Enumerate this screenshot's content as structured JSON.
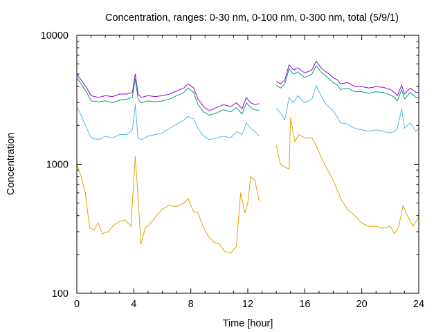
{
  "chart_data": {
    "type": "line",
    "title": "Concentration, ranges: 0-30 nm, 0-100 nm, 0-300 nm, total (5/9/1)",
    "xlabel": "Time [hour]",
    "ylabel": "Concentration",
    "xlim": [
      0,
      24
    ],
    "ylim": [
      100,
      10000
    ],
    "yscale": "log",
    "grid": false,
    "legend": "none",
    "x_ticks": [
      0,
      4,
      8,
      12,
      16,
      20,
      24
    ],
    "y_ticks": [
      100,
      1000,
      10000
    ],
    "x_tick_labels": [
      "0",
      "4",
      "8",
      "12",
      "16",
      "20",
      "24"
    ],
    "y_tick_labels": [
      "100",
      "1000",
      "10000"
    ],
    "series": [
      {
        "color": "#9400d3",
        "segments": [
          [
            [
              0,
              5000
            ],
            [
              0.3,
              4500
            ],
            [
              0.7,
              3900
            ],
            [
              1.0,
              3400
            ],
            [
              1.5,
              3300
            ],
            [
              2.0,
              3400
            ],
            [
              2.5,
              3350
            ],
            [
              3.0,
              3500
            ],
            [
              3.5,
              3500
            ],
            [
              3.9,
              3600
            ],
            [
              4.1,
              5000
            ],
            [
              4.3,
              3500
            ],
            [
              4.5,
              3300
            ],
            [
              5.0,
              3400
            ],
            [
              5.5,
              3350
            ],
            [
              6.0,
              3400
            ],
            [
              6.5,
              3500
            ],
            [
              7.0,
              3700
            ],
            [
              7.5,
              3900
            ],
            [
              7.8,
              4200
            ],
            [
              8.2,
              3900
            ],
            [
              8.5,
              3200
            ],
            [
              8.9,
              2800
            ],
            [
              9.3,
              2600
            ],
            [
              9.8,
              2750
            ],
            [
              10.3,
              2900
            ],
            [
              10.8,
              2800
            ],
            [
              11.2,
              3000
            ],
            [
              11.6,
              2700
            ],
            [
              11.9,
              3300
            ],
            [
              12.2,
              3000
            ],
            [
              12.5,
              2900
            ],
            [
              12.8,
              2950
            ]
          ],
          [
            [
              14.0,
              4400
            ],
            [
              14.3,
              4200
            ],
            [
              14.6,
              4500
            ],
            [
              14.9,
              5900
            ],
            [
              15.2,
              5400
            ],
            [
              15.5,
              5600
            ],
            [
              16.0,
              5100
            ],
            [
              16.5,
              5400
            ],
            [
              16.8,
              6300
            ],
            [
              17.2,
              5500
            ],
            [
              17.5,
              5200
            ],
            [
              18.0,
              4700
            ],
            [
              18.3,
              4500
            ],
            [
              18.5,
              4200
            ],
            [
              19.0,
              4300
            ],
            [
              19.5,
              4000
            ],
            [
              20.0,
              4000
            ],
            [
              20.5,
              3900
            ],
            [
              21.0,
              4000
            ],
            [
              21.5,
              3950
            ],
            [
              22.0,
              3800
            ],
            [
              22.3,
              3600
            ],
            [
              22.5,
              3400
            ],
            [
              22.8,
              4100
            ],
            [
              23.0,
              3500
            ],
            [
              23.4,
              3900
            ],
            [
              23.8,
              3600
            ],
            [
              24,
              3600
            ]
          ]
        ]
      },
      {
        "color": "#009e73",
        "segments": [
          [
            [
              0,
              4700
            ],
            [
              0.3,
              4200
            ],
            [
              0.7,
              3600
            ],
            [
              1.0,
              3100
            ],
            [
              1.5,
              3050
            ],
            [
              2.0,
              3100
            ],
            [
              2.5,
              3000
            ],
            [
              3.0,
              3150
            ],
            [
              3.5,
              3200
            ],
            [
              3.9,
              3300
            ],
            [
              4.1,
              4600
            ],
            [
              4.3,
              3200
            ],
            [
              4.5,
              3000
            ],
            [
              5.0,
              3100
            ],
            [
              5.5,
              3050
            ],
            [
              6.0,
              3100
            ],
            [
              6.5,
              3200
            ],
            [
              7.0,
              3400
            ],
            [
              7.5,
              3600
            ],
            [
              7.8,
              3900
            ],
            [
              8.2,
              3600
            ],
            [
              8.5,
              2900
            ],
            [
              8.9,
              2550
            ],
            [
              9.3,
              2400
            ],
            [
              9.8,
              2500
            ],
            [
              10.3,
              2650
            ],
            [
              10.8,
              2550
            ],
            [
              11.2,
              2750
            ],
            [
              11.6,
              2450
            ],
            [
              11.9,
              3000
            ],
            [
              12.2,
              2750
            ],
            [
              12.5,
              2650
            ],
            [
              12.8,
              2600
            ]
          ],
          [
            [
              14.0,
              4100
            ],
            [
              14.3,
              3900
            ],
            [
              14.6,
              4200
            ],
            [
              14.9,
              5500
            ],
            [
              15.2,
              5000
            ],
            [
              15.5,
              5200
            ],
            [
              16.0,
              4700
            ],
            [
              16.5,
              5000
            ],
            [
              16.8,
              5800
            ],
            [
              17.2,
              5100
            ],
            [
              17.5,
              4800
            ],
            [
              18.0,
              4300
            ],
            [
              18.3,
              4100
            ],
            [
              18.5,
              3800
            ],
            [
              19.0,
              3900
            ],
            [
              19.5,
              3650
            ],
            [
              20.0,
              3650
            ],
            [
              20.5,
              3550
            ],
            [
              21.0,
              3650
            ],
            [
              21.5,
              3600
            ],
            [
              22.0,
              3450
            ],
            [
              22.3,
              3300
            ],
            [
              22.5,
              3100
            ],
            [
              22.8,
              3800
            ],
            [
              23.0,
              3200
            ],
            [
              23.4,
              3600
            ],
            [
              23.8,
              3300
            ],
            [
              24,
              3300
            ]
          ]
        ]
      },
      {
        "color": "#56b4e9",
        "segments": [
          [
            [
              0,
              2800
            ],
            [
              0.3,
              2400
            ],
            [
              0.7,
              1900
            ],
            [
              1.0,
              1600
            ],
            [
              1.5,
              1550
            ],
            [
              2.0,
              1650
            ],
            [
              2.5,
              1600
            ],
            [
              3.0,
              1700
            ],
            [
              3.5,
              1700
            ],
            [
              3.9,
              1850
            ],
            [
              4.1,
              2900
            ],
            [
              4.3,
              1600
            ],
            [
              4.5,
              1550
            ],
            [
              5.0,
              1650
            ],
            [
              5.5,
              1700
            ],
            [
              6.0,
              1750
            ],
            [
              6.5,
              1900
            ],
            [
              7.0,
              2050
            ],
            [
              7.5,
              2200
            ],
            [
              7.8,
              2350
            ],
            [
              8.2,
              2250
            ],
            [
              8.5,
              1900
            ],
            [
              8.9,
              1650
            ],
            [
              9.3,
              1550
            ],
            [
              9.8,
              1600
            ],
            [
              10.3,
              1650
            ],
            [
              10.8,
              1600
            ],
            [
              11.2,
              1800
            ],
            [
              11.6,
              1700
            ],
            [
              11.9,
              2100
            ],
            [
              12.2,
              1900
            ],
            [
              12.5,
              1800
            ],
            [
              12.8,
              1650
            ]
          ],
          [
            [
              14.0,
              2700
            ],
            [
              14.3,
              2500
            ],
            [
              14.6,
              2200
            ],
            [
              14.9,
              3300
            ],
            [
              15.2,
              3000
            ],
            [
              15.5,
              3400
            ],
            [
              16.0,
              3000
            ],
            [
              16.5,
              3200
            ],
            [
              16.8,
              4100
            ],
            [
              17.2,
              3300
            ],
            [
              17.5,
              2900
            ],
            [
              18.0,
              2600
            ],
            [
              18.3,
              2300
            ],
            [
              18.5,
              2100
            ],
            [
              19.0,
              2050
            ],
            [
              19.5,
              1900
            ],
            [
              20.0,
              1850
            ],
            [
              20.5,
              1800
            ],
            [
              21.0,
              1850
            ],
            [
              21.5,
              1800
            ],
            [
              22.0,
              1750
            ],
            [
              22.3,
              1800
            ],
            [
              22.5,
              1900
            ],
            [
              22.8,
              2700
            ],
            [
              23.0,
              1900
            ],
            [
              23.4,
              2100
            ],
            [
              23.8,
              1800
            ],
            [
              24,
              1900
            ]
          ]
        ]
      },
      {
        "color": "#e69f00",
        "segments": [
          [
            [
              0,
              1000
            ],
            [
              0.3,
              800
            ],
            [
              0.6,
              600
            ],
            [
              0.9,
              320
            ],
            [
              1.2,
              310
            ],
            [
              1.5,
              350
            ],
            [
              1.8,
              290
            ],
            [
              2.2,
              300
            ],
            [
              2.6,
              340
            ],
            [
              3.0,
              360
            ],
            [
              3.4,
              370
            ],
            [
              3.8,
              330
            ],
            [
              4.1,
              1150
            ],
            [
              4.3,
              550
            ],
            [
              4.5,
              240
            ],
            [
              4.8,
              320
            ],
            [
              5.2,
              350
            ],
            [
              5.6,
              400
            ],
            [
              6.0,
              450
            ],
            [
              6.5,
              480
            ],
            [
              7.0,
              470
            ],
            [
              7.5,
              500
            ],
            [
              7.8,
              540
            ],
            [
              8.2,
              430
            ],
            [
              8.5,
              420
            ],
            [
              8.9,
              320
            ],
            [
              9.3,
              270
            ],
            [
              9.6,
              250
            ],
            [
              10.0,
              240
            ],
            [
              10.4,
              210
            ],
            [
              10.8,
              205
            ],
            [
              11.2,
              230
            ],
            [
              11.5,
              600
            ],
            [
              11.8,
              420
            ],
            [
              12.0,
              500
            ],
            [
              12.2,
              800
            ],
            [
              12.5,
              750
            ],
            [
              12.8,
              520
            ]
          ],
          [
            [
              14.0,
              1400
            ],
            [
              14.3,
              1000
            ],
            [
              14.6,
              950
            ],
            [
              14.9,
              920
            ],
            [
              15.0,
              2300
            ],
            [
              15.3,
              1500
            ],
            [
              15.6,
              1700
            ],
            [
              16.0,
              1600
            ],
            [
              16.5,
              1600
            ],
            [
              16.8,
              1400
            ],
            [
              17.2,
              1100
            ],
            [
              17.5,
              950
            ],
            [
              18.0,
              750
            ],
            [
              18.3,
              620
            ],
            [
              18.6,
              520
            ],
            [
              19.0,
              450
            ],
            [
              19.5,
              400
            ],
            [
              20.0,
              350
            ],
            [
              20.5,
              330
            ],
            [
              21.0,
              330
            ],
            [
              21.5,
              320
            ],
            [
              22.0,
              330
            ],
            [
              22.3,
              290
            ],
            [
              22.6,
              330
            ],
            [
              22.9,
              480
            ],
            [
              23.2,
              400
            ],
            [
              23.6,
              330
            ],
            [
              24,
              390
            ]
          ]
        ]
      }
    ]
  }
}
